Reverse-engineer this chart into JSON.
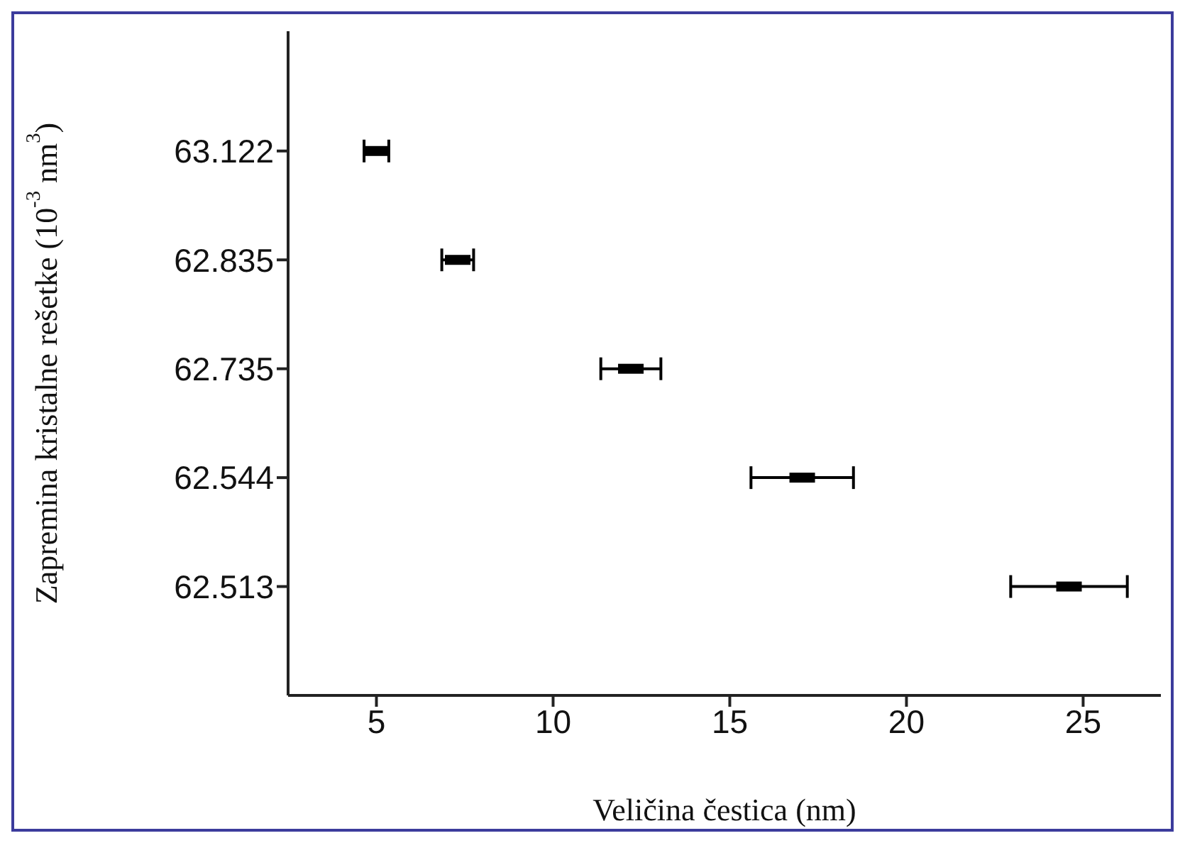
{
  "chart_data": {
    "type": "scatter",
    "orientation": "horizontal",
    "xlabel": "Veličina čestica (nm)",
    "ylabel": "Zapremina kristalne rešetke (10$^{-3}$ nm$^{3}$)",
    "categories": [
      "63.122",
      "62.835",
      "62.735",
      "62.544",
      "62.513"
    ],
    "values": [
      5.0,
      7.3,
      12.2,
      17.05,
      24.6
    ],
    "errors": [
      0.35,
      0.45,
      0.85,
      1.45,
      1.65
    ],
    "color": "#000000",
    "marker": "square",
    "grid": false,
    "legend": false,
    "xlim": [
      2.5,
      27.2
    ],
    "xticks": [
      5,
      10,
      15,
      20,
      25
    ]
  }
}
